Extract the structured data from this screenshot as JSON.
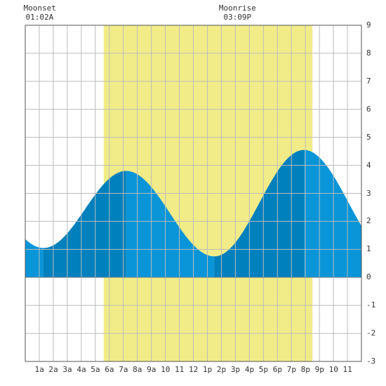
{
  "chart_data": {
    "type": "area",
    "title": "",
    "xlabel": "",
    "ylabel": "",
    "x_tick_labels": [
      "1a",
      "2a",
      "3a",
      "4a",
      "5a",
      "6a",
      "7a",
      "8a",
      "9a",
      "10",
      "11",
      "12",
      "1p",
      "2p",
      "3p",
      "4p",
      "5p",
      "6p",
      "7p",
      "8p",
      "9p",
      "10",
      "11"
    ],
    "x_range_hours": [
      0,
      24
    ],
    "ylim": [
      -3,
      9
    ],
    "y_ticks": [
      9,
      8,
      7,
      6,
      5,
      4,
      3,
      2,
      1,
      0,
      -1,
      -2,
      -3
    ],
    "grid": true,
    "daylight_band_hours": [
      5.6,
      20.5
    ],
    "tide_extrema": [
      {
        "hour": 1.3,
        "height": 1.05,
        "type": "low"
      },
      {
        "hour": 7.2,
        "height": 3.8,
        "type": "high"
      },
      {
        "hour": 13.5,
        "height": 0.75,
        "type": "low"
      },
      {
        "hour": 19.9,
        "height": 4.55,
        "type": "high"
      }
    ],
    "series": [
      {
        "x": [
          0,
          1,
          2,
          3,
          4,
          5,
          6,
          7,
          8,
          9,
          10,
          11,
          12,
          13,
          14,
          15,
          16,
          17,
          18,
          19,
          20,
          21,
          22,
          23,
          24
        ],
        "values": [
          1.4,
          1.07,
          1.15,
          1.58,
          2.2,
          2.85,
          3.42,
          3.79,
          3.72,
          3.22,
          2.47,
          1.67,
          1.05,
          0.79,
          0.92,
          1.51,
          2.37,
          3.28,
          4.02,
          4.47,
          4.55,
          4.24,
          3.55,
          2.7,
          2.0
        ]
      }
    ],
    "annotations": [
      {
        "label": "Moonset",
        "time": "01:02A",
        "hour": 1.03
      },
      {
        "label": "Moonrise",
        "time": "03:09P",
        "hour": 15.15
      }
    ]
  },
  "colors": {
    "daylight": "#f2ec88",
    "tide_light": "#0a95d8",
    "tide_dark": "#0080bc",
    "grid": "#bbbbbb",
    "frame": "#555555"
  }
}
